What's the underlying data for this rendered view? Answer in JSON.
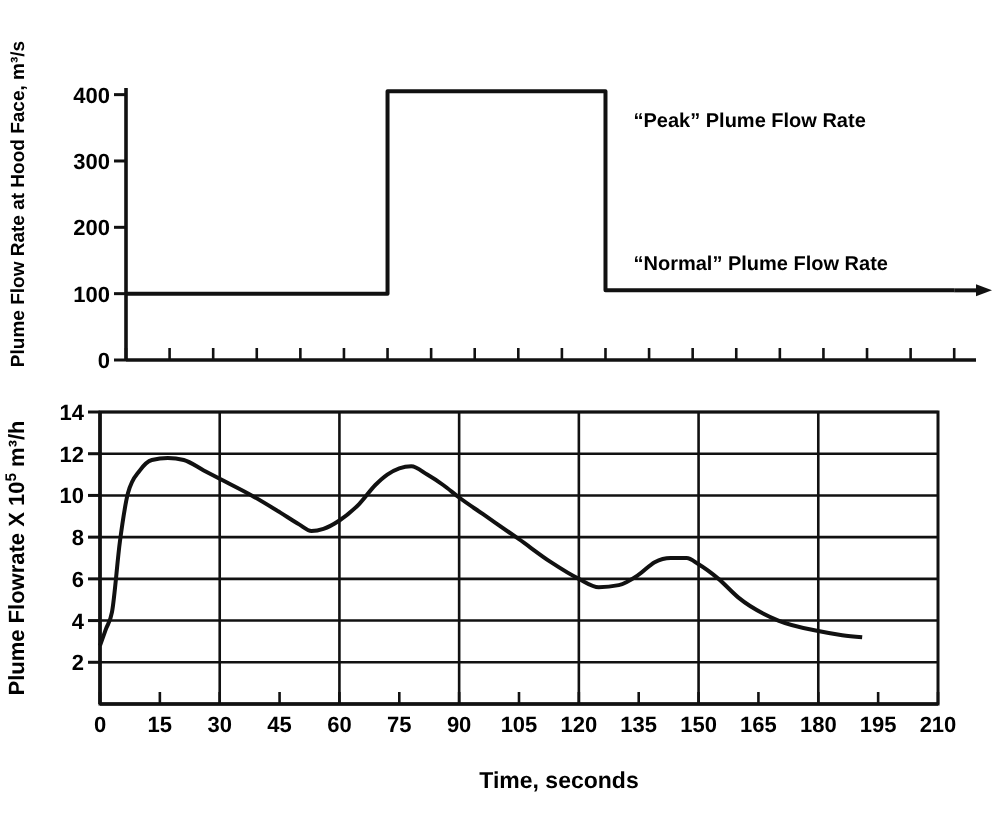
{
  "chart_data": [
    {
      "type": "step",
      "ylabel": "Plume Flow Rate at Hood Face, m³/s",
      "categories": [
        null,
        null,
        null,
        null,
        null,
        null,
        null,
        null,
        null,
        null,
        null,
        null,
        null,
        null,
        null,
        null,
        null,
        null,
        null,
        null
      ],
      "values": [
        100,
        100,
        100,
        100,
        100,
        100,
        405,
        405,
        405,
        405,
        405,
        105,
        105,
        105,
        105,
        105,
        105,
        105,
        105,
        105
      ],
      "color": "#111111",
      "ylim": [
        0,
        410
      ],
      "yticks": [
        0,
        100,
        200,
        300,
        400
      ],
      "annotations": [
        "“Peak” Plume Flow Rate",
        "“Normal” Plume Flow Rate"
      ]
    },
    {
      "type": "line",
      "xlabel": "Time, seconds",
      "ylabel": "Plume Flowrate X 10$^{5}$ m³/h",
      "color": "#111111",
      "x": [
        0,
        1.5,
        3,
        5,
        7,
        10,
        13,
        17,
        21,
        26,
        30,
        38,
        45,
        50,
        53,
        56,
        60,
        65,
        69,
        72,
        75,
        78,
        82,
        86,
        90,
        96,
        105,
        113,
        120,
        125,
        130,
        135,
        139,
        143,
        147,
        150,
        155,
        160,
        170,
        180,
        186,
        191
      ],
      "values": [
        2.8,
        3.6,
        4.4,
        7.8,
        10.1,
        11.2,
        11.7,
        11.8,
        11.7,
        11.2,
        10.8,
        10.0,
        9.2,
        8.6,
        8.3,
        8.4,
        8.8,
        9.6,
        10.5,
        11.0,
        11.3,
        11.4,
        11.0,
        10.5,
        9.9,
        9.1,
        7.9,
        6.8,
        6.0,
        5.6,
        5.7,
        6.2,
        6.8,
        7.0,
        7.0,
        6.7,
        6.0,
        5.1,
        4.0,
        3.5,
        3.3,
        3.2
      ],
      "xlim": [
        0,
        210
      ],
      "xticks": [
        0,
        15,
        30,
        45,
        60,
        75,
        90,
        105,
        120,
        135,
        150,
        165,
        180,
        195,
        210
      ],
      "ylim": [
        0,
        14
      ],
      "yticks": [
        2,
        4,
        6,
        8,
        10,
        12,
        14
      ],
      "grid": "y",
      "ref_lines": [
        {
          "axis": "x",
          "value": 30
        },
        {
          "axis": "x",
          "value": 60
        },
        {
          "axis": "x",
          "value": 90
        },
        {
          "axis": "x",
          "value": 120
        },
        {
          "axis": "x",
          "value": 150
        },
        {
          "axis": "x",
          "value": 180
        }
      ]
    }
  ]
}
